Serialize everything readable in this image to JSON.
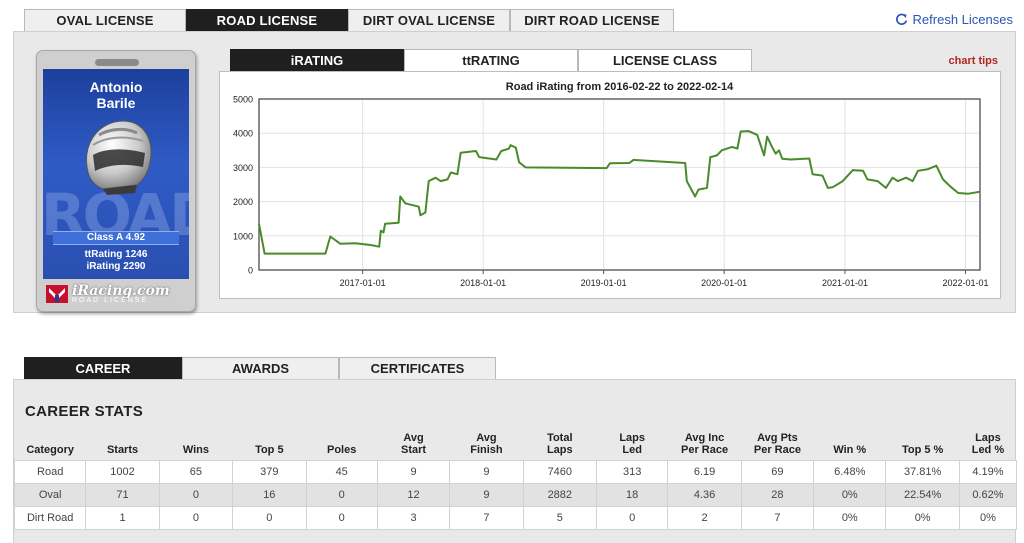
{
  "license_tabs": [
    "OVAL LICENSE",
    "ROAD LICENSE",
    "DIRT OVAL LICENSE",
    "DIRT ROAD LICENSE"
  ],
  "active_license_tab": "ROAD LICENSE",
  "refresh_label": "Refresh Licenses",
  "card": {
    "name_first": "Antonio",
    "name_last": "Barile",
    "watermark": "ROAD",
    "class_text": "Class A 4.92",
    "ttrating_text": "ttRating 1246",
    "irating_text": "iRating 2290",
    "brand": "iRacing.com",
    "brand_sub": "ROAD LICENSE"
  },
  "chart_tabs": [
    "iRATING",
    "ttRATING",
    "LICENSE CLASS"
  ],
  "active_chart_tab": "iRATING",
  "chart_tips_label": "chart tips",
  "colors": {
    "line": "#4a8a2a",
    "accent_link": "#2a55b3",
    "tips": "#b3261e"
  },
  "chart_data": {
    "type": "line",
    "title": "Road iRating from 2016-02-22 to 2022-02-14",
    "xlabel": "",
    "ylabel": "",
    "x_range": [
      "2016-02-22",
      "2022-02-14"
    ],
    "ylim": [
      0,
      5000
    ],
    "yticks": [
      0,
      1000,
      2000,
      3000,
      4000,
      5000
    ],
    "xticks": [
      "2017-01-01",
      "2018-01-01",
      "2019-01-01",
      "2020-01-01",
      "2021-01-01",
      "2022-01-01"
    ],
    "grid": true,
    "series": [
      {
        "points": [
          [
            "2016-02-22",
            1350
          ],
          [
            "2016-03-10",
            480
          ],
          [
            "2016-09-10",
            480
          ],
          [
            "2016-09-25",
            980
          ],
          [
            "2016-10-25",
            770
          ],
          [
            "2016-12-10",
            780
          ],
          [
            "2017-01-25",
            730
          ],
          [
            "2017-02-20",
            680
          ],
          [
            "2017-02-25",
            1150
          ],
          [
            "2017-03-05",
            1100
          ],
          [
            "2017-03-10",
            1350
          ],
          [
            "2017-04-20",
            1380
          ],
          [
            "2017-04-25",
            2150
          ],
          [
            "2017-05-10",
            1950
          ],
          [
            "2017-06-20",
            1850
          ],
          [
            "2017-06-25",
            1600
          ],
          [
            "2017-07-10",
            1680
          ],
          [
            "2017-07-20",
            2600
          ],
          [
            "2017-08-10",
            2700
          ],
          [
            "2017-08-25",
            2600
          ],
          [
            "2017-09-15",
            2650
          ],
          [
            "2017-09-25",
            2850
          ],
          [
            "2017-10-15",
            2800
          ],
          [
            "2017-10-25",
            3430
          ],
          [
            "2017-12-10",
            3480
          ],
          [
            "2017-12-20",
            3300
          ],
          [
            "2018-02-10",
            3230
          ],
          [
            "2018-02-25",
            3480
          ],
          [
            "2018-03-20",
            3550
          ],
          [
            "2018-03-25",
            3650
          ],
          [
            "2018-04-10",
            3580
          ],
          [
            "2018-04-20",
            3150
          ],
          [
            "2018-05-10",
            3000
          ],
          [
            "2019-01-10",
            2980
          ],
          [
            "2019-01-20",
            3120
          ],
          [
            "2019-03-20",
            3130
          ],
          [
            "2019-04-01",
            3220
          ],
          [
            "2019-09-05",
            3130
          ],
          [
            "2019-09-10",
            2600
          ],
          [
            "2019-10-05",
            2150
          ],
          [
            "2019-10-15",
            2350
          ],
          [
            "2019-11-10",
            2400
          ],
          [
            "2019-11-20",
            3300
          ],
          [
            "2019-12-10",
            3350
          ],
          [
            "2019-12-25",
            3500
          ],
          [
            "2020-01-25",
            3600
          ],
          [
            "2020-02-10",
            3550
          ],
          [
            "2020-02-20",
            4050
          ],
          [
            "2020-03-15",
            4060
          ],
          [
            "2020-04-10",
            3950
          ],
          [
            "2020-05-01",
            3350
          ],
          [
            "2020-05-10",
            3900
          ],
          [
            "2020-05-25",
            3600
          ],
          [
            "2020-06-05",
            3400
          ],
          [
            "2020-06-15",
            3500
          ],
          [
            "2020-06-25",
            3250
          ],
          [
            "2020-07-20",
            3230
          ],
          [
            "2020-09-15",
            3260
          ],
          [
            "2020-09-25",
            2800
          ],
          [
            "2020-10-25",
            2760
          ],
          [
            "2020-11-10",
            2400
          ],
          [
            "2020-11-25",
            2420
          ],
          [
            "2020-12-25",
            2600
          ],
          [
            "2021-01-25",
            2920
          ],
          [
            "2021-02-25",
            2900
          ],
          [
            "2021-03-10",
            2650
          ],
          [
            "2021-04-10",
            2600
          ],
          [
            "2021-05-05",
            2400
          ],
          [
            "2021-05-25",
            2700
          ],
          [
            "2021-06-10",
            2600
          ],
          [
            "2021-07-05",
            2700
          ],
          [
            "2021-07-25",
            2600
          ],
          [
            "2021-08-10",
            2900
          ],
          [
            "2021-09-10",
            2950
          ],
          [
            "2021-10-05",
            3050
          ],
          [
            "2021-10-25",
            2650
          ],
          [
            "2021-11-15",
            2450
          ],
          [
            "2021-12-10",
            2250
          ],
          [
            "2022-01-10",
            2230
          ],
          [
            "2022-02-14",
            2290
          ]
        ]
      }
    ]
  },
  "bottom_tabs": [
    "CAREER",
    "AWARDS",
    "CERTIFICATES"
  ],
  "active_bottom_tab": "CAREER",
  "stats_title": "CAREER STATS",
  "stats_headers": [
    [
      "",
      "Category"
    ],
    [
      "",
      "Starts"
    ],
    [
      "",
      "Wins"
    ],
    [
      "",
      "Top 5"
    ],
    [
      "",
      "Poles"
    ],
    [
      "Avg",
      "Start"
    ],
    [
      "Avg",
      "Finish"
    ],
    [
      "Total",
      "Laps"
    ],
    [
      "Laps",
      "Led"
    ],
    [
      "Avg Inc",
      "Per Race"
    ],
    [
      "Avg Pts",
      "Per Race"
    ],
    [
      "",
      "Win %"
    ],
    [
      "",
      "Top 5 %"
    ],
    [
      "Laps",
      "Led %"
    ]
  ],
  "stats_rows": [
    [
      "Road",
      "1002",
      "65",
      "379",
      "45",
      "9",
      "9",
      "7460",
      "313",
      "6.19",
      "69",
      "6.48%",
      "37.81%",
      "4.19%"
    ],
    [
      "Oval",
      "71",
      "0",
      "16",
      "0",
      "12",
      "9",
      "2882",
      "18",
      "4.36",
      "28",
      "0%",
      "22.54%",
      "0.62%"
    ],
    [
      "Dirt Road",
      "1",
      "0",
      "0",
      "0",
      "3",
      "7",
      "5",
      "0",
      "2",
      "7",
      "0%",
      "0%",
      "0%"
    ]
  ]
}
